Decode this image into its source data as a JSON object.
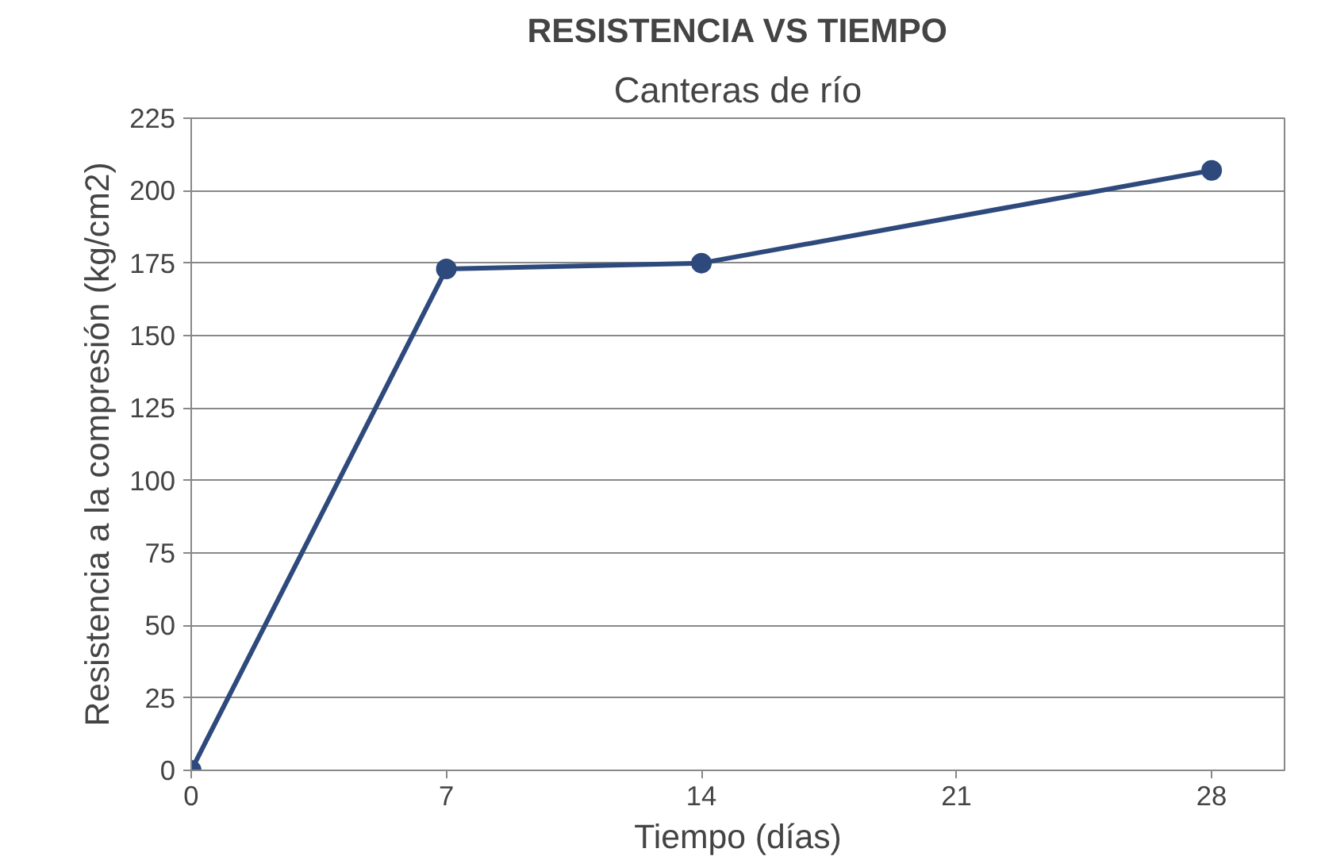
{
  "chart_data": {
    "type": "line",
    "title": "RESISTENCIA VS TIEMPO",
    "subtitle": "Canteras de río",
    "xlabel": "Tiempo (días)",
    "ylabel": "Resistencia a la compresión (kg/cm2)",
    "x": [
      0,
      7,
      14,
      28
    ],
    "series": [
      {
        "color": "#2e4a7d",
        "values": [
          0,
          173,
          175,
          207
        ]
      }
    ],
    "xlim": [
      0,
      30
    ],
    "xticks": [
      0,
      7,
      14,
      21,
      28
    ],
    "ylim": [
      0,
      225
    ],
    "yticks": [
      0,
      25,
      50,
      75,
      100,
      125,
      150,
      175,
      200,
      225
    ],
    "grid": "y",
    "marker": "circle",
    "line_style": "solid"
  }
}
